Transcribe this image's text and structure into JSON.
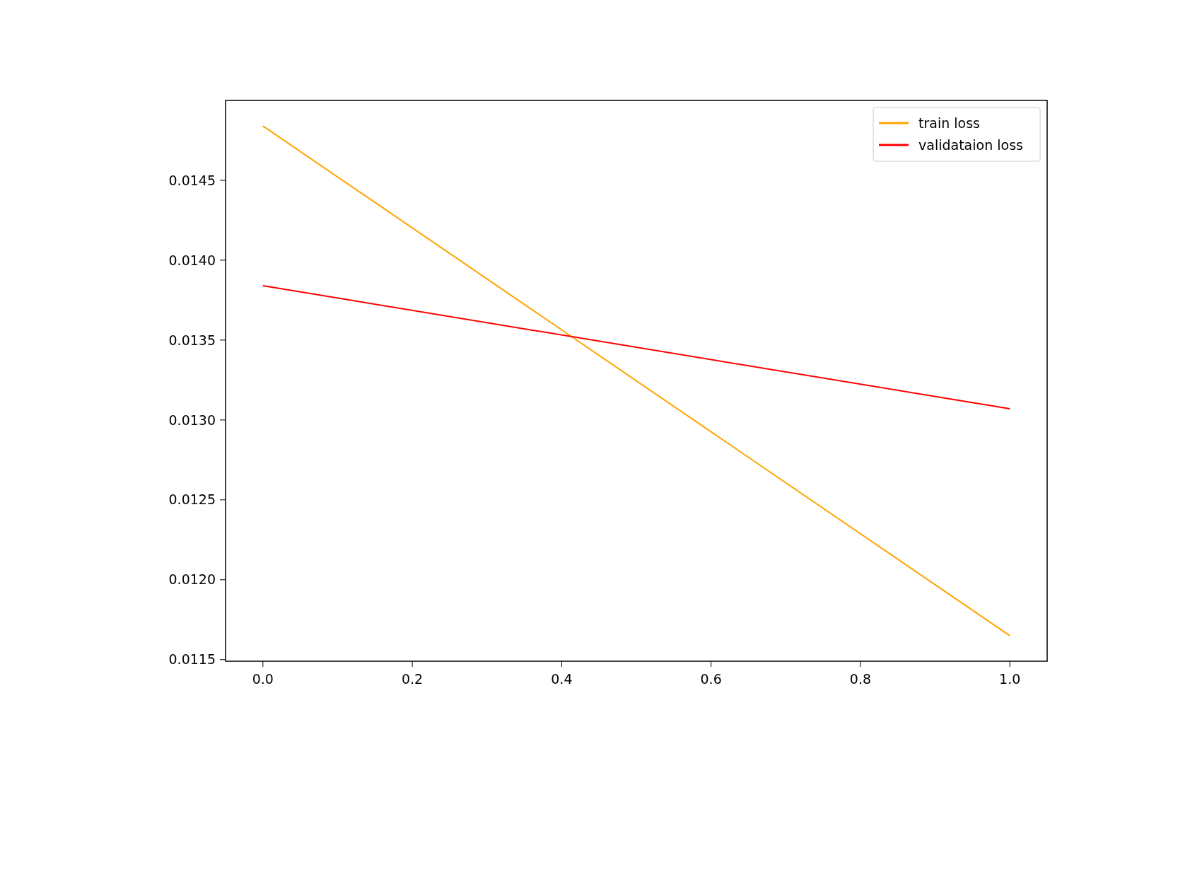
{
  "chart_data": {
    "type": "line",
    "x": [
      0,
      1
    ],
    "series": [
      {
        "name": "train loss",
        "color": "#ffa500",
        "values": [
          0.01484,
          0.01165
        ]
      },
      {
        "name": "validataion loss",
        "color": "#ff0000",
        "values": [
          0.01384,
          0.01307
        ]
      }
    ],
    "xlim": [
      -0.05,
      1.05
    ],
    "ylim": [
      0.01149,
      0.015
    ],
    "xticks": [
      {
        "value": 0,
        "label": "0.0"
      },
      {
        "value": 0.2,
        "label": "0.2"
      },
      {
        "value": 0.4,
        "label": "0.4"
      },
      {
        "value": 0.6,
        "label": "0.6"
      },
      {
        "value": 0.8,
        "label": "0.8"
      },
      {
        "value": 1,
        "label": "1.0"
      }
    ],
    "yticks": [
      {
        "value": 0.0115,
        "label": "0.0115"
      },
      {
        "value": 0.012,
        "label": "0.0120"
      },
      {
        "value": 0.0125,
        "label": "0.0125"
      },
      {
        "value": 0.013,
        "label": "0.0130"
      },
      {
        "value": 0.0135,
        "label": "0.0135"
      },
      {
        "value": 0.014,
        "label": "0.0140"
      },
      {
        "value": 0.0145,
        "label": "0.0145"
      }
    ],
    "legend": "top right",
    "grid": false
  }
}
